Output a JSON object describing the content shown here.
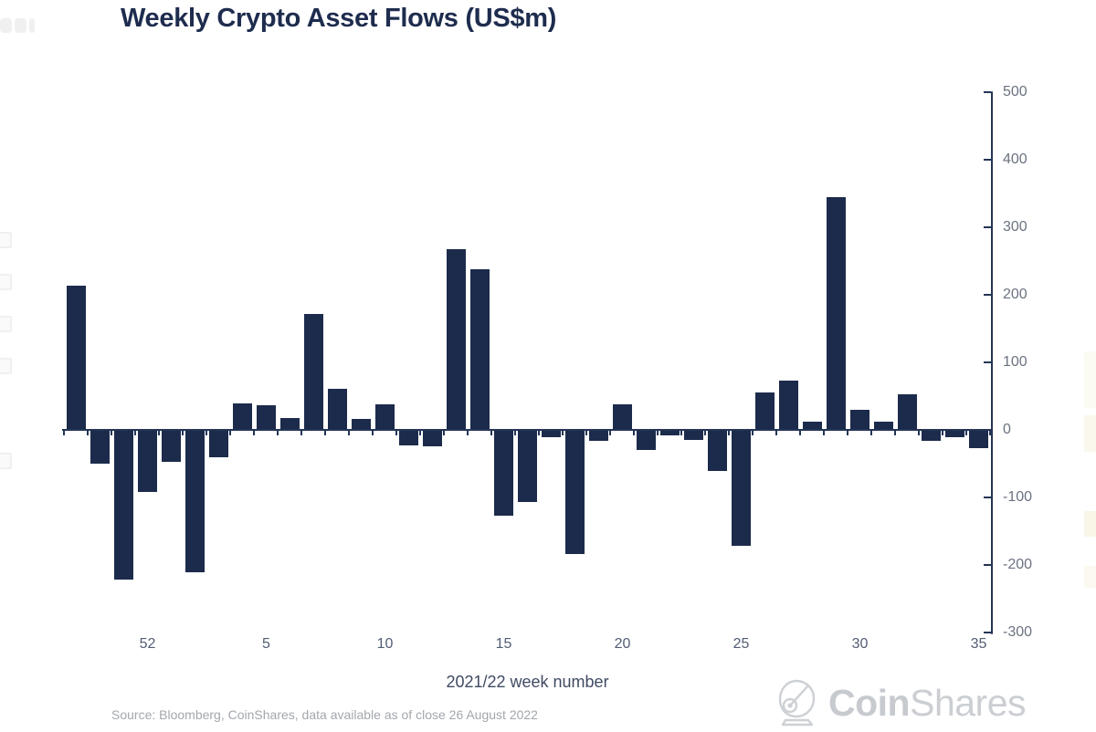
{
  "page": {
    "title": "Weekly Crypto Asset Flows (US$m)",
    "source_note": "Source: Bloomberg, CoinShares, data available as of close 26 August 2022",
    "logo": {
      "bold": "Coin",
      "light": "Shares"
    }
  },
  "colors": {
    "bar": "#1c2b4b",
    "axis": "#243556",
    "title": "#1e2c4e",
    "tick_label": "#6b7280",
    "xtick_label": "#525d73",
    "axis_title": "#3f4a63",
    "source": "#a3a7ad",
    "logo": "#c7cacf"
  },
  "chart_data": {
    "type": "bar",
    "title": "Weekly Crypto Asset Flows (US$m)",
    "xlabel": "2021/22 week number",
    "ylabel": "US$m",
    "ylim": [
      -300,
      500
    ],
    "grid": false,
    "legend": "none",
    "y_axis_side": "right",
    "y_ticks": [
      500,
      400,
      300,
      200,
      100,
      0,
      -100,
      -200,
      -300
    ],
    "categories": [
      "49",
      "50",
      "51",
      "52",
      "1",
      "2",
      "3",
      "4",
      "5",
      "6",
      "7",
      "8",
      "9",
      "10",
      "11",
      "12",
      "13",
      "14",
      "15",
      "16",
      "17",
      "18",
      "19",
      "20",
      "21",
      "22",
      "23",
      "24",
      "25",
      "26",
      "27",
      "28",
      "29",
      "30",
      "31",
      "32",
      "33",
      "34",
      "35"
    ],
    "values": [
      212,
      -48,
      -220,
      -90,
      -46,
      -209,
      -39,
      38,
      35,
      16,
      170,
      60,
      15,
      36,
      -21,
      -23,
      266,
      236,
      -126,
      -106,
      -9,
      -183,
      -15,
      36,
      -28,
      -7,
      -13,
      -59,
      -170,
      54,
      71,
      11,
      343,
      28,
      11,
      52,
      -15,
      -9,
      -26
    ],
    "x_tick_labels": [
      "52",
      "5",
      "10",
      "15",
      "20",
      "25",
      "30",
      "35"
    ],
    "x_tick_bar_indices": [
      3,
      8,
      13,
      18,
      23,
      28,
      33,
      38
    ]
  }
}
